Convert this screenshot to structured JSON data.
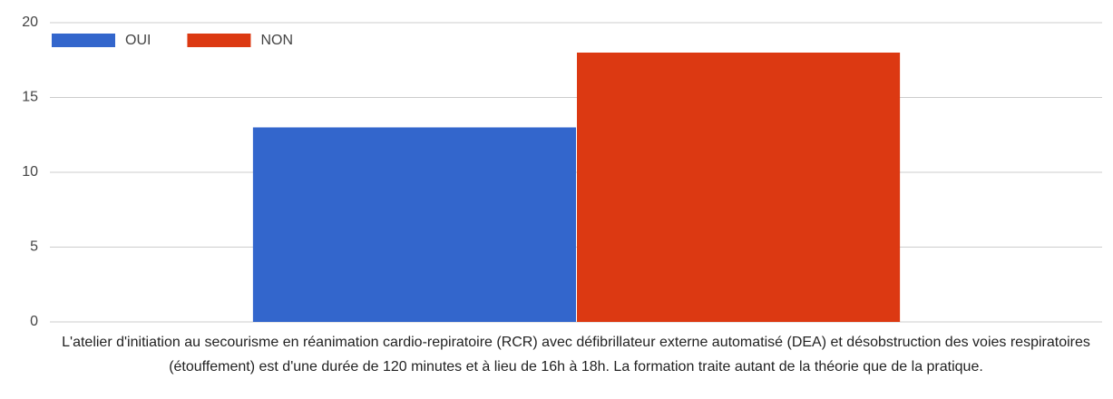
{
  "chart_data": {
    "type": "bar",
    "categories": [
      "L'atelier d'initiation au secourisme en réanimation cardio-repiratoire (RCR) avec défibrillateur externe automatisé (DEA) et désobstruction des voies respiratoires (étouffement) est d'une durée de 120 minutes et à lieu de 16h à 18h. La formation traite autant de la théorie que de la pratique."
    ],
    "series": [
      {
        "name": "OUI",
        "color": "#3366cc",
        "values": [
          13
        ]
      },
      {
        "name": "NON",
        "color": "#dc3912",
        "values": [
          18
        ]
      }
    ],
    "ylim": [
      0,
      20
    ],
    "yticks": [
      0,
      5,
      10,
      15,
      20
    ],
    "grid": true,
    "legend": "top-left"
  }
}
